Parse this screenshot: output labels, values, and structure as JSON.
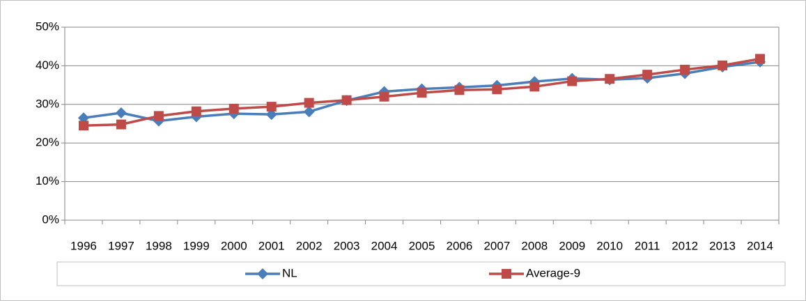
{
  "chart_data": {
    "type": "line",
    "categories": [
      "1996",
      "1997",
      "1998",
      "1999",
      "2000",
      "2001",
      "2002",
      "2003",
      "2004",
      "2005",
      "2006",
      "2007",
      "2008",
      "2009",
      "2010",
      "2011",
      "2012",
      "2013",
      "2014"
    ],
    "series": [
      {
        "name": "NL",
        "color": "#4a7ebb",
        "marker": "diamond",
        "values": [
          26.5,
          27.8,
          25.7,
          26.8,
          27.6,
          27.4,
          28.1,
          31.0,
          33.3,
          34.0,
          34.4,
          34.9,
          35.9,
          36.7,
          36.4,
          36.8,
          38.0,
          39.7,
          41.0
        ]
      },
      {
        "name": "Average-9",
        "color": "#be4b48",
        "marker": "square",
        "values": [
          24.5,
          24.8,
          27.0,
          28.2,
          28.9,
          29.4,
          30.4,
          31.1,
          32.0,
          33.0,
          33.7,
          33.9,
          34.6,
          36.0,
          36.6,
          37.7,
          39.0,
          40.1,
          41.8
        ]
      }
    ],
    "ylim": [
      0,
      50
    ],
    "yticks": [
      {
        "value": 0,
        "label": "0%"
      },
      {
        "value": 10,
        "label": "10%"
      },
      {
        "value": 20,
        "label": "20%"
      },
      {
        "value": 30,
        "label": "30%"
      },
      {
        "value": 40,
        "label": "40%"
      },
      {
        "value": 50,
        "label": "50%"
      }
    ],
    "grid": true,
    "legend": "bottom"
  }
}
